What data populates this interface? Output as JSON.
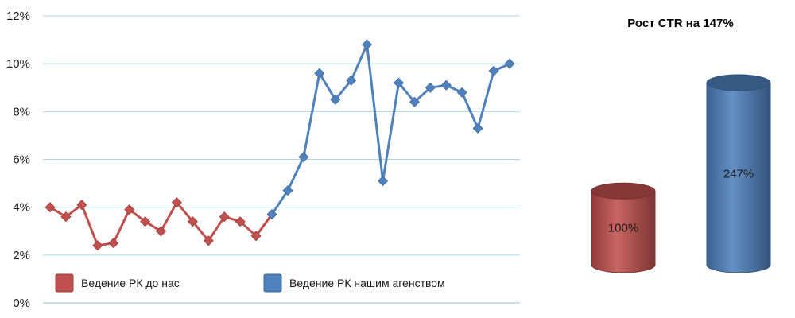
{
  "chart_data": [
    {
      "type": "line",
      "title": "",
      "xlabel": "",
      "ylabel": "",
      "ylim": [
        0,
        12
      ],
      "yticks": [
        "0%",
        "2%",
        "4%",
        "6%",
        "8%",
        "10%",
        "12%"
      ],
      "grid": true,
      "legend": "bottom",
      "x": [
        1,
        2,
        3,
        4,
        5,
        6,
        7,
        8,
        9,
        10,
        11,
        12,
        13,
        14,
        15,
        16,
        17,
        18,
        19,
        20,
        21,
        22,
        23,
        24,
        25,
        26,
        27,
        28,
        29,
        30
      ],
      "series": [
        {
          "name": "Ведение РК до нас",
          "color": "#c0504d",
          "x": [
            1,
            2,
            3,
            4,
            5,
            6,
            7,
            8,
            9,
            10,
            11,
            12,
            13,
            14,
            15
          ],
          "values": [
            4.0,
            3.6,
            4.1,
            2.4,
            2.5,
            3.9,
            3.4,
            3.0,
            4.2,
            3.4,
            2.6,
            3.6,
            3.4,
            2.8,
            3.7
          ]
        },
        {
          "name": "Ведение РК нашим агенством",
          "color": "#4f81bd",
          "x": [
            15,
            16,
            17,
            18,
            19,
            20,
            21,
            22,
            23,
            24,
            25,
            26,
            27,
            28,
            29,
            30
          ],
          "values": [
            3.7,
            4.7,
            6.1,
            9.6,
            8.5,
            9.3,
            10.8,
            5.1,
            9.2,
            8.4,
            9.0,
            9.1,
            8.8,
            7.3,
            9.7,
            10.0
          ]
        }
      ]
    },
    {
      "type": "bar",
      "style": "cylinder",
      "title": "Рост CTR на 147%",
      "categories": [
        "",
        ""
      ],
      "values": [
        100,
        247
      ],
      "labels": [
        "100%",
        "247%"
      ],
      "colors": [
        "#c0504d",
        "#4f81bd"
      ]
    }
  ]
}
